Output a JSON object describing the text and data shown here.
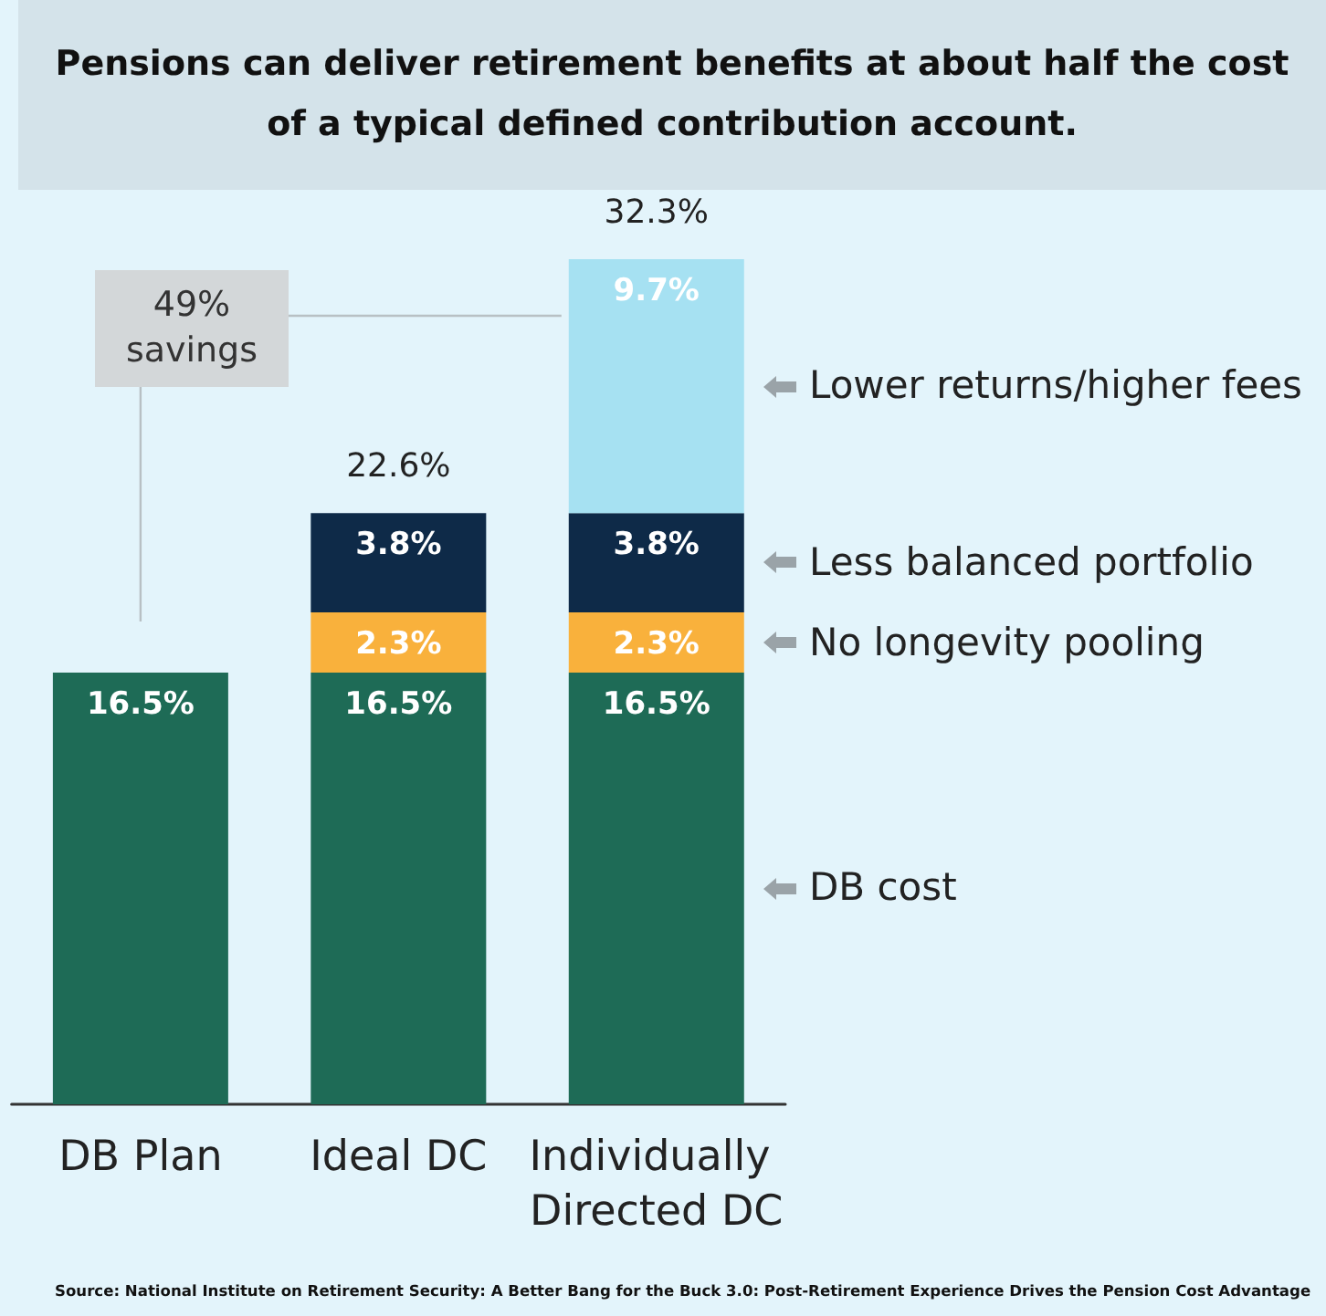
{
  "chart_data": {
    "type": "bar",
    "stacked": true,
    "title": "Pensions can deliver retirement benefits at about half the cost of a typical defined contribution account.",
    "categories": [
      "DB Plan",
      "Ideal DC",
      "Individually Directed DC"
    ],
    "series": [
      {
        "name": "DB cost",
        "color": "#1e6b56",
        "values": [
          16.5,
          16.5,
          16.5
        ],
        "value_labels": [
          "16.5%",
          "16.5%",
          "16.5%"
        ]
      },
      {
        "name": "No longevity pooling",
        "color": "#f9b13c",
        "values": [
          null,
          2.3,
          2.3
        ],
        "value_labels": [
          null,
          "2.3%",
          "2.3%"
        ]
      },
      {
        "name": "Less balanced portfolio",
        "color": "#0e2a48",
        "values": [
          null,
          3.8,
          3.8
        ],
        "value_labels": [
          null,
          "3.8%",
          "3.8%"
        ]
      },
      {
        "name": "Lower returns/higher fees",
        "color": "#a6e1f2",
        "values": [
          null,
          null,
          9.7
        ],
        "value_labels": [
          null,
          null,
          "9.7%"
        ]
      }
    ],
    "totals": [
      null,
      "22.6%",
      "32.3%"
    ],
    "annotations": [
      "49% savings",
      "Source: National Institute on Retirement Security: A Better Bang for the Buck 3.0: Post-Retirement Experience Drives the Pension Cost Advantage"
    ]
  }
}
